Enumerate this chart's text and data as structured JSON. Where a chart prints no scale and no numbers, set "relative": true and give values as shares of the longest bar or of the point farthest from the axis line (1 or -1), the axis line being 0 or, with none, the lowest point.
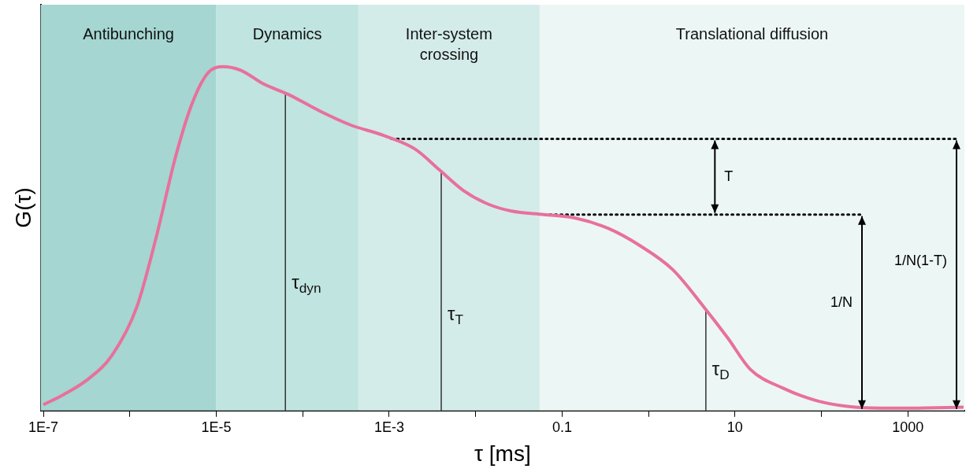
{
  "chart_data": {
    "type": "line",
    "relative": true,
    "xlabel": "τ [ms]",
    "ylabel": "G(τ)",
    "log": "x",
    "marker": "none",
    "legend": false,
    "xlim": [
      9.3e-08,
      4500
    ],
    "xticks": [
      {
        "value": 1e-07,
        "label": "1E-7"
      },
      {
        "value": 1e-06,
        "label": null
      },
      {
        "value": 1e-05,
        "label": "1E-5"
      },
      {
        "value": 0.0001,
        "label": null
      },
      {
        "value": 0.001,
        "label": "1E-3"
      },
      {
        "value": 0.01,
        "label": null
      },
      {
        "value": 0.1,
        "label": "0.1"
      },
      {
        "value": 1,
        "label": null
      },
      {
        "value": 10,
        "label": "10"
      },
      {
        "value": 100,
        "label": null
      },
      {
        "value": 1000,
        "label": "1000"
      }
    ],
    "x": [
      1e-07,
      1.7e-07,
      3.2e-07,
      6.2e-07,
      1.2e-06,
      2e-06,
      3.4e-06,
      5.2e-06,
      7.9e-06,
      1.2e-05,
      1.9e-05,
      3.5e-05,
      6.7e-05,
      0.00016,
      0.00036,
      0.00086,
      0.002,
      0.0038,
      0.0072,
      0.014,
      0.026,
      0.062,
      0.14,
      0.34,
      0.79,
      1.9,
      4.4,
      8.3,
      15,
      36,
      87,
      200,
      480,
      1100,
      4400
    ],
    "series": [
      {
        "color": "#e8709c",
        "values": [
          0.017,
          0.046,
          0.089,
          0.16,
          0.3,
          0.5,
          0.74,
          0.89,
          0.98,
          1,
          0.99,
          0.95,
          0.92,
          0.87,
          0.83,
          0.8,
          0.76,
          0.7,
          0.64,
          0.6,
          0.58,
          0.57,
          0.56,
          0.53,
          0.48,
          0.41,
          0.3,
          0.21,
          0.12,
          0.065,
          0.029,
          0.012,
          0.007,
          0.007,
          0.01
        ]
      }
    ],
    "bands": [
      {
        "axis": "x",
        "from": 9.3e-08,
        "to": 1e-05,
        "label": "Antibunching",
        "color": "#a5d6d1"
      },
      {
        "axis": "x",
        "from": 1e-05,
        "to": 0.00044,
        "label": "Dynamics",
        "color": "#c0e4e0"
      },
      {
        "axis": "x",
        "from": 0.00044,
        "to": 0.055,
        "label": "Inter-system crossing",
        "color": "#d4ece9"
      },
      {
        "axis": "x",
        "from": 0.055,
        "to": 4500,
        "label": "Translational diffusion",
        "color": "#ecf6f5"
      }
    ],
    "ref_lines": [
      {
        "axis": "y",
        "value": 0.79,
        "label": null,
        "color": "#111111",
        "line_style": "dotted"
      },
      {
        "axis": "y",
        "value": 0.57,
        "label": null,
        "color": "#111111",
        "line_style": "dotted"
      },
      {
        "axis": "x",
        "value": 6.3e-05,
        "label": "τ$_{dyn}$",
        "color": "#333333"
      },
      {
        "axis": "x",
        "value": 0.004,
        "label": "τ$_{T}$",
        "color": "#333333"
      },
      {
        "axis": "x",
        "value": 4.6,
        "label": "τ$_{D}$",
        "color": "#333333"
      }
    ],
    "annotations": [
      "T",
      "1/N",
      "1/N(1-T)"
    ]
  }
}
